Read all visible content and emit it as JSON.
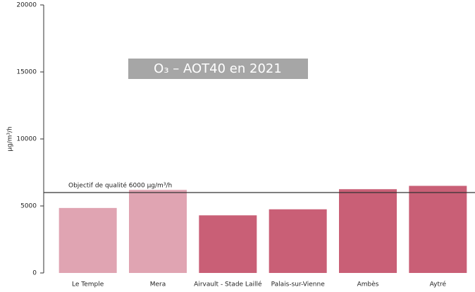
{
  "chart_data": {
    "type": "bar",
    "title": "O₃ – AOT40 en 2021",
    "y_label": "µg/m³/h",
    "categories": [
      "Le Temple",
      "Mera",
      "Airvault - Stade Laillé",
      "Palais-sur-Vienne",
      "Ambès",
      "Aytré"
    ],
    "values": [
      4850,
      6200,
      4300,
      4750,
      6250,
      6500
    ],
    "colors": [
      "#e0a4b2",
      "#e0a4b2",
      "#c95f76",
      "#c95f76",
      "#c95f76",
      "#c95f76"
    ],
    "threshold": {
      "value": 6000,
      "label": "Objectif de qualité 6000 µg/m³/h",
      "color": "#333333"
    },
    "ylim": [
      0,
      20000
    ],
    "yticks": [
      0,
      5000,
      10000,
      15000,
      20000
    ],
    "grid": false
  }
}
